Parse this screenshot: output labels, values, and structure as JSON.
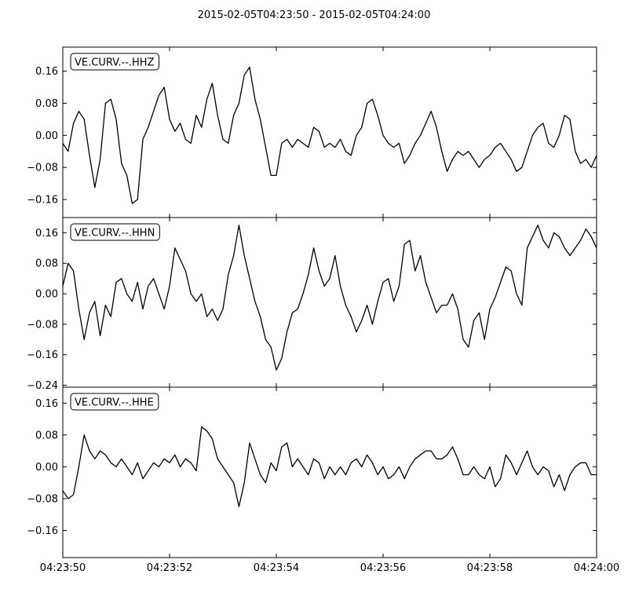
{
  "title": "2015-02-05T04:23:50  -  2015-02-05T04:24:00",
  "chart_data": [
    {
      "type": "line",
      "label": "VE.CURV.--.HHZ",
      "ylim": [
        -0.205,
        0.22
      ],
      "yticks": [
        "0.16",
        "0.08",
        "0.00",
        "−0.08",
        "−0.16"
      ],
      "ytick_values": [
        0.16,
        0.08,
        0.0,
        -0.08,
        -0.16
      ],
      "x": [
        0.0,
        0.1,
        0.2,
        0.3,
        0.4,
        0.5,
        0.6,
        0.7,
        0.8,
        0.9,
        1.0,
        1.1,
        1.2,
        1.3,
        1.4,
        1.5,
        1.6,
        1.7,
        1.8,
        1.9,
        2.0,
        2.1,
        2.2,
        2.3,
        2.4,
        2.5,
        2.6,
        2.7,
        2.8,
        2.9,
        3.0,
        3.1,
        3.2,
        3.3,
        3.4,
        3.5,
        3.6,
        3.7,
        3.8,
        3.9,
        4.0,
        4.1,
        4.2,
        4.3,
        4.4,
        4.5,
        4.6,
        4.7,
        4.8,
        4.9,
        5.0,
        5.1,
        5.2,
        5.3,
        5.4,
        5.5,
        5.6,
        5.7,
        5.8,
        5.9,
        6.0,
        6.1,
        6.2,
        6.3,
        6.4,
        6.5,
        6.6,
        6.7,
        6.8,
        6.9,
        7.0,
        7.1,
        7.2,
        7.3,
        7.4,
        7.5,
        7.6,
        7.7,
        7.8,
        7.9,
        8.0,
        8.1,
        8.2,
        8.3,
        8.4,
        8.5,
        8.6,
        8.7,
        8.8,
        8.9,
        9.0,
        9.1,
        9.2,
        9.3,
        9.4,
        9.5,
        9.6,
        9.7,
        9.8,
        9.9,
        10.0
      ],
      "values": [
        -0.02,
        -0.04,
        0.03,
        0.06,
        0.04,
        -0.05,
        -0.13,
        -0.06,
        0.08,
        0.09,
        0.04,
        -0.07,
        -0.1,
        -0.17,
        -0.16,
        -0.01,
        0.02,
        0.06,
        0.1,
        0.12,
        0.04,
        0.01,
        0.03,
        -0.01,
        -0.02,
        0.05,
        0.02,
        0.09,
        0.13,
        0.05,
        -0.01,
        -0.02,
        0.05,
        0.08,
        0.15,
        0.17,
        0.09,
        0.04,
        -0.03,
        -0.1,
        -0.1,
        -0.02,
        -0.01,
        -0.03,
        -0.01,
        -0.02,
        -0.03,
        0.02,
        0.01,
        -0.03,
        -0.02,
        -0.03,
        -0.01,
        -0.04,
        -0.05,
        0.0,
        0.02,
        0.08,
        0.09,
        0.05,
        0.0,
        -0.02,
        -0.03,
        -0.02,
        -0.07,
        -0.05,
        -0.02,
        0.0,
        0.03,
        0.06,
        0.02,
        -0.04,
        -0.09,
        -0.06,
        -0.04,
        -0.05,
        -0.04,
        -0.06,
        -0.08,
        -0.06,
        -0.05,
        -0.03,
        -0.02,
        -0.04,
        -0.06,
        -0.09,
        -0.08,
        -0.04,
        0.0,
        0.02,
        0.03,
        -0.02,
        -0.03,
        0.0,
        0.05,
        0.04,
        -0.04,
        -0.07,
        -0.06,
        -0.08,
        -0.05
      ]
    },
    {
      "type": "line",
      "label": "VE.CURV.--.HHN",
      "ylim": [
        -0.245,
        0.2
      ],
      "yticks": [
        "0.16",
        "0.08",
        "0.00",
        "−0.08",
        "−0.16",
        "−0.24"
      ],
      "ytick_values": [
        0.16,
        0.08,
        0.0,
        -0.08,
        -0.16,
        -0.24
      ],
      "x": [
        0.0,
        0.1,
        0.2,
        0.3,
        0.4,
        0.5,
        0.6,
        0.7,
        0.8,
        0.9,
        1.0,
        1.1,
        1.2,
        1.3,
        1.4,
        1.5,
        1.6,
        1.7,
        1.8,
        1.9,
        2.0,
        2.1,
        2.2,
        2.3,
        2.4,
        2.5,
        2.6,
        2.7,
        2.8,
        2.9,
        3.0,
        3.1,
        3.2,
        3.3,
        3.4,
        3.5,
        3.6,
        3.7,
        3.8,
        3.9,
        4.0,
        4.1,
        4.2,
        4.3,
        4.4,
        4.5,
        4.6,
        4.7,
        4.8,
        4.9,
        5.0,
        5.1,
        5.2,
        5.3,
        5.4,
        5.5,
        5.6,
        5.7,
        5.8,
        5.9,
        6.0,
        6.1,
        6.2,
        6.3,
        6.4,
        6.5,
        6.6,
        6.7,
        6.8,
        6.9,
        7.0,
        7.1,
        7.2,
        7.3,
        7.4,
        7.5,
        7.6,
        7.7,
        7.8,
        7.9,
        8.0,
        8.1,
        8.2,
        8.3,
        8.4,
        8.5,
        8.6,
        8.7,
        8.8,
        8.9,
        9.0,
        9.1,
        9.2,
        9.3,
        9.4,
        9.5,
        9.6,
        9.7,
        9.8,
        9.9,
        10.0
      ],
      "values": [
        0.02,
        0.08,
        0.06,
        -0.04,
        -0.12,
        -0.05,
        -0.02,
        -0.11,
        -0.03,
        -0.06,
        0.03,
        0.04,
        0.0,
        -0.02,
        0.03,
        -0.04,
        0.02,
        0.04,
        0.0,
        -0.04,
        0.02,
        0.12,
        0.09,
        0.06,
        0.0,
        -0.02,
        0.0,
        -0.06,
        -0.04,
        -0.07,
        -0.04,
        0.05,
        0.1,
        0.18,
        0.1,
        0.04,
        -0.02,
        -0.06,
        -0.12,
        -0.14,
        -0.2,
        -0.17,
        -0.1,
        -0.05,
        -0.04,
        0.0,
        0.05,
        0.12,
        0.06,
        0.02,
        0.04,
        0.1,
        0.02,
        -0.03,
        -0.06,
        -0.1,
        -0.07,
        -0.03,
        -0.08,
        -0.02,
        0.03,
        0.04,
        -0.02,
        0.02,
        0.13,
        0.14,
        0.06,
        0.1,
        0.03,
        -0.01,
        -0.05,
        -0.03,
        -0.03,
        0.0,
        -0.04,
        -0.12,
        -0.14,
        -0.07,
        -0.05,
        -0.12,
        -0.04,
        -0.01,
        0.03,
        0.07,
        0.06,
        0.0,
        -0.03,
        0.12,
        0.15,
        0.18,
        0.14,
        0.12,
        0.16,
        0.15,
        0.12,
        0.1,
        0.12,
        0.14,
        0.17,
        0.15,
        0.12
      ]
    },
    {
      "type": "line",
      "label": "VE.CURV.--.HHE",
      "ylim": [
        -0.228,
        0.2
      ],
      "yticks": [
        "0.16",
        "0.08",
        "0.00",
        "−0.08",
        "−0.16"
      ],
      "ytick_values": [
        0.16,
        0.08,
        0.0,
        -0.08,
        -0.16
      ],
      "x": [
        0.0,
        0.1,
        0.2,
        0.3,
        0.4,
        0.5,
        0.6,
        0.7,
        0.8,
        0.9,
        1.0,
        1.1,
        1.2,
        1.3,
        1.4,
        1.5,
        1.6,
        1.7,
        1.8,
        1.9,
        2.0,
        2.1,
        2.2,
        2.3,
        2.4,
        2.5,
        2.6,
        2.7,
        2.8,
        2.9,
        3.0,
        3.1,
        3.2,
        3.3,
        3.4,
        3.5,
        3.6,
        3.7,
        3.8,
        3.9,
        4.0,
        4.1,
        4.2,
        4.3,
        4.4,
        4.5,
        4.6,
        4.7,
        4.8,
        4.9,
        5.0,
        5.1,
        5.2,
        5.3,
        5.4,
        5.5,
        5.6,
        5.7,
        5.8,
        5.9,
        6.0,
        6.1,
        6.2,
        6.3,
        6.4,
        6.5,
        6.6,
        6.7,
        6.8,
        6.9,
        7.0,
        7.1,
        7.2,
        7.3,
        7.4,
        7.5,
        7.6,
        7.7,
        7.8,
        7.9,
        8.0,
        8.1,
        8.2,
        8.3,
        8.4,
        8.5,
        8.6,
        8.7,
        8.8,
        8.9,
        9.0,
        9.1,
        9.2,
        9.3,
        9.4,
        9.5,
        9.6,
        9.7,
        9.8,
        9.9,
        10.0
      ],
      "values": [
        -0.06,
        -0.08,
        -0.07,
        0.0,
        0.08,
        0.04,
        0.02,
        0.04,
        0.03,
        0.01,
        0.0,
        0.02,
        0.0,
        -0.02,
        0.01,
        -0.03,
        -0.01,
        0.01,
        0.0,
        0.02,
        0.01,
        0.03,
        0.0,
        0.02,
        0.01,
        -0.01,
        0.1,
        0.09,
        0.07,
        0.02,
        0.0,
        -0.02,
        -0.04,
        -0.1,
        -0.04,
        0.06,
        0.02,
        -0.02,
        -0.04,
        0.01,
        -0.01,
        0.05,
        0.06,
        0.0,
        0.02,
        0.0,
        -0.02,
        0.02,
        0.01,
        -0.03,
        0.0,
        -0.02,
        0.0,
        -0.02,
        0.01,
        0.02,
        0.0,
        0.03,
        0.01,
        -0.02,
        0.0,
        -0.03,
        -0.02,
        0.0,
        -0.03,
        0.0,
        0.02,
        0.03,
        0.04,
        0.04,
        0.02,
        0.02,
        0.03,
        0.05,
        0.02,
        -0.02,
        -0.02,
        0.0,
        -0.02,
        -0.03,
        0.0,
        -0.05,
        -0.03,
        0.03,
        0.01,
        -0.02,
        0.01,
        0.04,
        0.0,
        -0.02,
        0.0,
        -0.01,
        -0.05,
        -0.02,
        -0.06,
        -0.02,
        0.0,
        0.01,
        0.01,
        -0.02,
        -0.02
      ]
    }
  ],
  "xaxis": {
    "ticks": [
      "04:23:50",
      "04:23:52",
      "04:23:54",
      "04:23:56",
      "04:23:58",
      "04:24:00"
    ],
    "tick_seconds": [
      0,
      2,
      4,
      6,
      8,
      10
    ],
    "xlim": [
      0,
      10
    ]
  },
  "colors": {
    "trace": "#000000",
    "axes": "#000000",
    "background": "#ffffff"
  }
}
